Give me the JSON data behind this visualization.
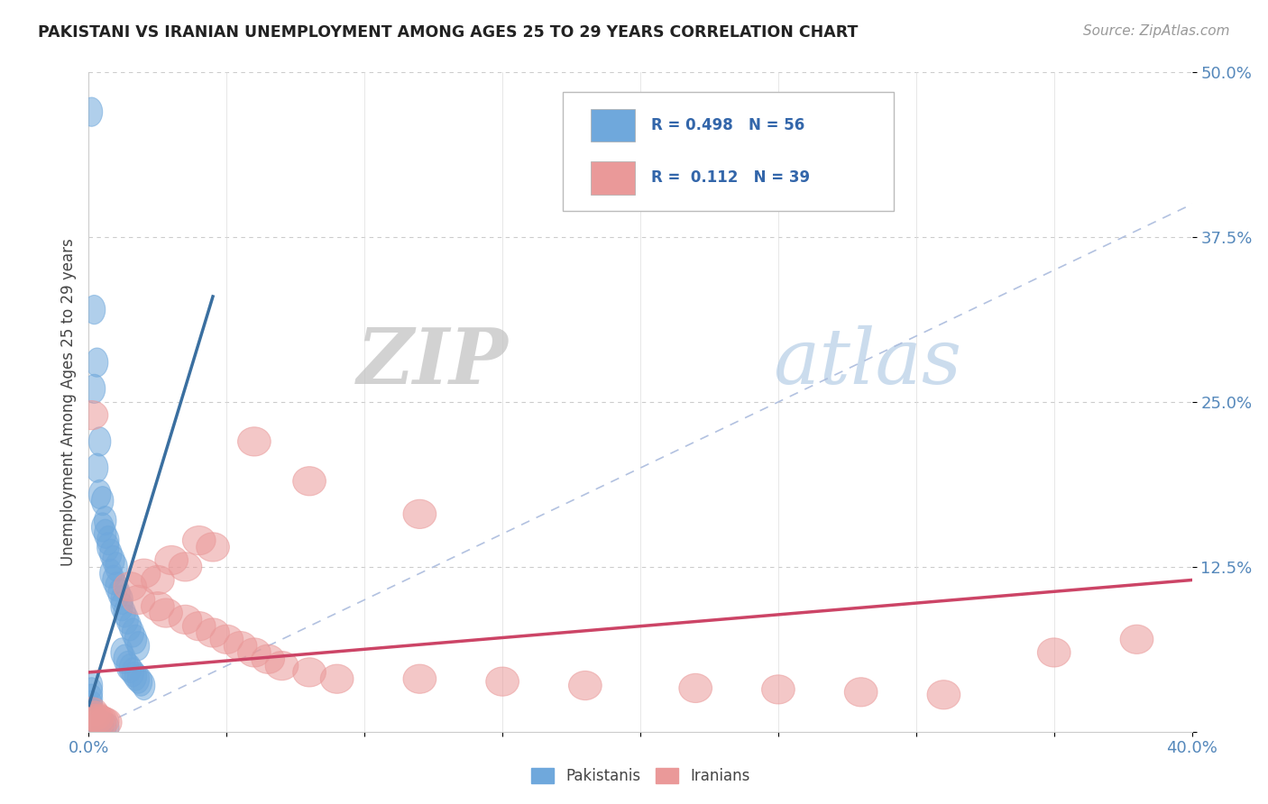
{
  "title": "PAKISTANI VS IRANIAN UNEMPLOYMENT AMONG AGES 25 TO 29 YEARS CORRELATION CHART",
  "source": "Source: ZipAtlas.com",
  "ylabel": "Unemployment Among Ages 25 to 29 years",
  "xlim": [
    0.0,
    0.4
  ],
  "ylim": [
    0.0,
    0.5
  ],
  "xtick_positions": [
    0.0,
    0.05,
    0.1,
    0.15,
    0.2,
    0.25,
    0.3,
    0.35,
    0.4
  ],
  "xticklabels": [
    "0.0%",
    "",
    "",
    "",
    "",
    "",
    "",
    "",
    "40.0%"
  ],
  "ytick_positions": [
    0.0,
    0.125,
    0.25,
    0.375,
    0.5
  ],
  "yticklabels": [
    "",
    "12.5%",
    "25.0%",
    "37.5%",
    "50.0%"
  ],
  "pakistani_color": "#6fa8dc",
  "iranian_color": "#ea9999",
  "pakistani_line_color": "#3a6fa0",
  "iranian_line_color": "#cc4466",
  "pakistani_R": 0.498,
  "pakistani_N": 56,
  "iranian_R": 0.112,
  "iranian_N": 39,
  "diag_color": "#aabbdd",
  "watermark_zip_color": "#c8d8e8",
  "watermark_atlas_color": "#8899aa",
  "pak_line_x0": 0.0,
  "pak_line_y0": 0.02,
  "pak_line_x1": 0.045,
  "pak_line_y1": 0.33,
  "iran_line_x0": 0.0,
  "iran_line_y0": 0.045,
  "iran_line_x1": 0.4,
  "iran_line_y1": 0.115,
  "pakistani_points": [
    [
      0.001,
      0.47
    ],
    [
      0.002,
      0.32
    ],
    [
      0.003,
      0.28
    ],
    [
      0.002,
      0.26
    ],
    [
      0.004,
      0.22
    ],
    [
      0.003,
      0.2
    ],
    [
      0.004,
      0.18
    ],
    [
      0.005,
      0.175
    ],
    [
      0.006,
      0.16
    ],
    [
      0.005,
      0.155
    ],
    [
      0.006,
      0.15
    ],
    [
      0.007,
      0.145
    ],
    [
      0.007,
      0.14
    ],
    [
      0.008,
      0.135
    ],
    [
      0.009,
      0.13
    ],
    [
      0.01,
      0.125
    ],
    [
      0.008,
      0.12
    ],
    [
      0.009,
      0.115
    ],
    [
      0.01,
      0.11
    ],
    [
      0.011,
      0.105
    ],
    [
      0.012,
      0.1
    ],
    [
      0.012,
      0.095
    ],
    [
      0.013,
      0.09
    ],
    [
      0.014,
      0.085
    ],
    [
      0.015,
      0.08
    ],
    [
      0.016,
      0.075
    ],
    [
      0.017,
      0.07
    ],
    [
      0.018,
      0.065
    ],
    [
      0.012,
      0.06
    ],
    [
      0.013,
      0.055
    ],
    [
      0.014,
      0.05
    ],
    [
      0.015,
      0.048
    ],
    [
      0.016,
      0.045
    ],
    [
      0.017,
      0.042
    ],
    [
      0.018,
      0.04
    ],
    [
      0.019,
      0.038
    ],
    [
      0.02,
      0.035
    ],
    [
      0.001,
      0.035
    ],
    [
      0.001,
      0.03
    ],
    [
      0.001,
      0.025
    ],
    [
      0.001,
      0.02
    ],
    [
      0.001,
      0.015
    ],
    [
      0.001,
      0.012
    ],
    [
      0.001,
      0.01
    ],
    [
      0.002,
      0.01
    ],
    [
      0.002,
      0.009
    ],
    [
      0.002,
      0.008
    ],
    [
      0.003,
      0.008
    ],
    [
      0.003,
      0.007
    ],
    [
      0.003,
      0.006
    ],
    [
      0.004,
      0.006
    ],
    [
      0.004,
      0.005
    ],
    [
      0.005,
      0.005
    ],
    [
      0.005,
      0.004
    ],
    [
      0.006,
      0.004
    ],
    [
      0.007,
      0.003
    ]
  ],
  "iranian_points": [
    [
      0.001,
      0.24
    ],
    [
      0.06,
      0.22
    ],
    [
      0.08,
      0.19
    ],
    [
      0.12,
      0.165
    ],
    [
      0.04,
      0.145
    ],
    [
      0.045,
      0.14
    ],
    [
      0.03,
      0.13
    ],
    [
      0.035,
      0.125
    ],
    [
      0.02,
      0.12
    ],
    [
      0.025,
      0.115
    ],
    [
      0.015,
      0.11
    ],
    [
      0.018,
      0.1
    ],
    [
      0.025,
      0.095
    ],
    [
      0.028,
      0.09
    ],
    [
      0.035,
      0.085
    ],
    [
      0.04,
      0.08
    ],
    [
      0.045,
      0.075
    ],
    [
      0.05,
      0.07
    ],
    [
      0.055,
      0.065
    ],
    [
      0.06,
      0.06
    ],
    [
      0.065,
      0.055
    ],
    [
      0.07,
      0.05
    ],
    [
      0.08,
      0.045
    ],
    [
      0.09,
      0.04
    ],
    [
      0.12,
      0.04
    ],
    [
      0.15,
      0.038
    ],
    [
      0.18,
      0.035
    ],
    [
      0.22,
      0.033
    ],
    [
      0.25,
      0.032
    ],
    [
      0.28,
      0.03
    ],
    [
      0.31,
      0.028
    ],
    [
      0.35,
      0.06
    ],
    [
      0.38,
      0.07
    ],
    [
      0.001,
      0.015
    ],
    [
      0.002,
      0.012
    ],
    [
      0.003,
      0.01
    ],
    [
      0.004,
      0.009
    ],
    [
      0.005,
      0.008
    ],
    [
      0.006,
      0.007
    ]
  ]
}
